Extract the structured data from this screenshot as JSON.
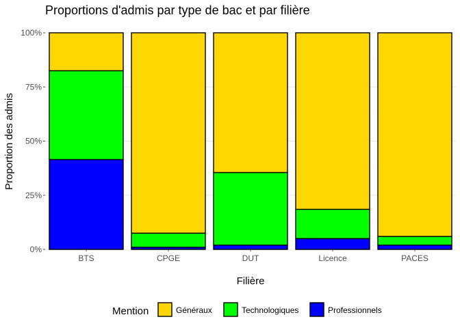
{
  "chart_data": {
    "type": "bar",
    "stacked": true,
    "normalized": true,
    "title": "Proportions d'admis par type de bac et par filière",
    "xlabel": "Filière",
    "ylabel": "Proportion des admis",
    "ylim": [
      0,
      1
    ],
    "yticks": [
      {
        "value": 0,
        "label": "0%"
      },
      {
        "value": 0.25,
        "label": "25%"
      },
      {
        "value": 0.5,
        "label": "50%"
      },
      {
        "value": 0.75,
        "label": "75%"
      },
      {
        "value": 1,
        "label": "100%"
      }
    ],
    "categories": [
      "BTS",
      "CPGE",
      "DUT",
      "Licence",
      "PACES"
    ],
    "series": [
      {
        "name": "Généraux",
        "color": "#FFD700",
        "values": [
          0.175,
          0.925,
          0.645,
          0.815,
          0.94
        ]
      },
      {
        "name": "Technologiques",
        "color": "#00FF00",
        "values": [
          0.41,
          0.065,
          0.335,
          0.135,
          0.04
        ]
      },
      {
        "name": "Professionnels",
        "color": "#0000FF",
        "values": [
          0.415,
          0.01,
          0.02,
          0.05,
          0.02
        ]
      }
    ],
    "grid": true,
    "legend": {
      "title": "Mention",
      "position": "bottom"
    }
  }
}
